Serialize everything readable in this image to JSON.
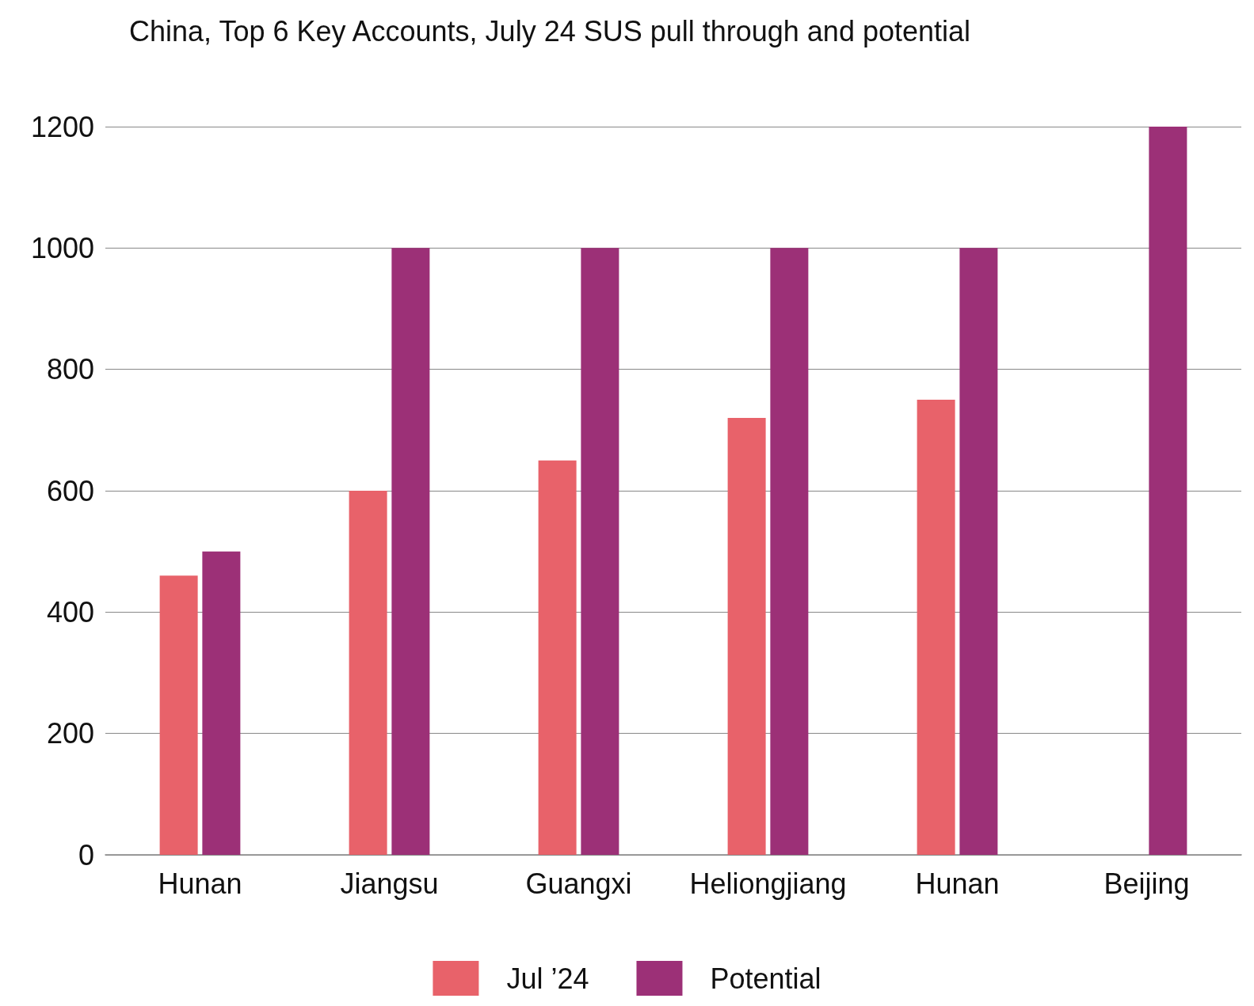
{
  "chart_data": {
    "type": "bar",
    "title": "China, Top 6 Key Accounts, July 24 SUS pull through and potential",
    "categories": [
      "Hunan",
      "Jiangsu",
      "Guangxi",
      "Heliongjiang",
      "Hunan",
      "Beijing"
    ],
    "series": [
      {
        "name": "Jul ’24",
        "color": "#e8626a",
        "values": [
          460,
          600,
          650,
          720,
          750,
          null
        ]
      },
      {
        "name": "Potential",
        "color": "#9c3077",
        "values": [
          500,
          1000,
          1000,
          1000,
          1000,
          1200
        ]
      }
    ],
    "ylim": [
      0,
      1200
    ],
    "yticks": [
      0,
      200,
      400,
      600,
      800,
      1000,
      1200
    ],
    "grid": "y",
    "legend": "bottom"
  }
}
